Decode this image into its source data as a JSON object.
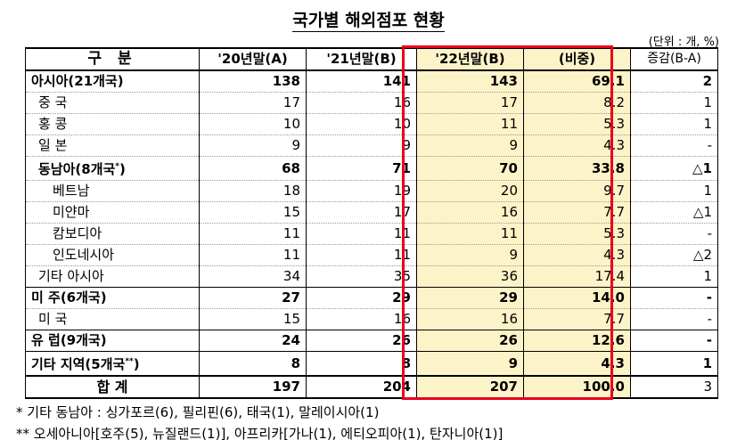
{
  "title": "국가별 해외점포 현황",
  "unit": "(단위 : 개, %)",
  "headers": [
    "구 분",
    "'20년말(A)",
    "'21년말(B)",
    "'22년말(B)",
    "(비중)",
    "증감(B-A)"
  ],
  "rows": [
    {
      "label": "아시아(21개국)",
      "a": "138",
      "b": "141",
      "c": "143",
      "share": "69.1",
      "diff": "2",
      "level": 0
    },
    {
      "label": "중 국",
      "a": "17",
      "b": "16",
      "c": "17",
      "share": "8.2",
      "diff": "1",
      "level": 1
    },
    {
      "label": "홍 콩",
      "a": "10",
      "b": "10",
      "c": "11",
      "share": "5.3",
      "diff": "1",
      "level": 1
    },
    {
      "label": "일 본",
      "a": "9",
      "b": "9",
      "c": "9",
      "share": "4.3",
      "diff": "-",
      "level": 1
    },
    {
      "label": "동남아(8개국",
      "a": "68",
      "b": "71",
      "c": "70",
      "share": "33.8",
      "diff": "△1",
      "level": 1,
      "sup": "*",
      "close": ")"
    },
    {
      "label": "베트남",
      "a": "18",
      "b": "19",
      "c": "20",
      "share": "9.7",
      "diff": "1",
      "level": 2
    },
    {
      "label": "미얀마",
      "a": "15",
      "b": "17",
      "c": "16",
      "share": "7.7",
      "diff": "△1",
      "level": 2
    },
    {
      "label": "캄보디아",
      "a": "11",
      "b": "11",
      "c": "11",
      "share": "5.3",
      "diff": "-",
      "level": 2
    },
    {
      "label": "인도네시아",
      "a": "11",
      "b": "11",
      "c": "9",
      "share": "4.3",
      "diff": "△2",
      "level": 2
    },
    {
      "label": "기타 아시아",
      "a": "34",
      "b": "35",
      "c": "36",
      "share": "17.4",
      "diff": "1",
      "level": 1
    },
    {
      "label": "미 주(6개국)",
      "a": "27",
      "b": "29",
      "c": "29",
      "share": "14.0",
      "diff": "-",
      "level": 0
    },
    {
      "label": "미 국",
      "a": "15",
      "b": "16",
      "c": "16",
      "share": "7.7",
      "diff": "-",
      "level": 1
    },
    {
      "label": "유 럽(9개국)",
      "a": "24",
      "b": "26",
      "c": "26",
      "share": "12.6",
      "diff": "-",
      "level": 0
    },
    {
      "label": "기타 지역(5개국",
      "a": "8",
      "b": "8",
      "c": "9",
      "share": "4.3",
      "diff": "1",
      "level": 0,
      "sup": "**",
      "close": ")"
    },
    {
      "label": "합   계",
      "a": "197",
      "b": "204",
      "c": "207",
      "share": "100.0",
      "diff": "3",
      "level": 0,
      "total": true
    }
  ],
  "notes": [
    "*  기타 동남아 : 싱가포르(6), 필리핀(6), 태국(1), 말레이시아(1)",
    "** 오세아니아[호주(5), 뉴질랜드(1)], 아프리카[가나(1), 에티오피아(1), 탄자니아(1)]"
  ]
}
